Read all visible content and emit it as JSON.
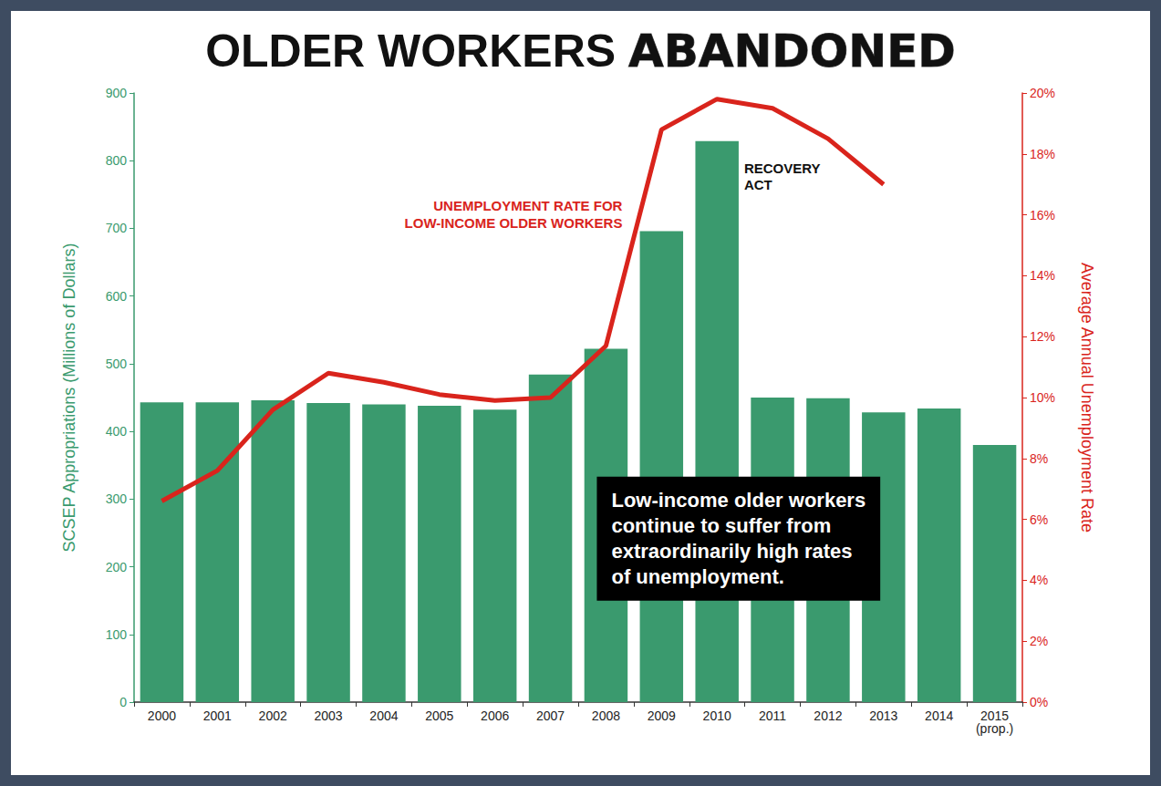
{
  "chart_data": {
    "type": "bar",
    "title": "OLDER WORKERS ABANDONED",
    "categories": [
      "2000",
      "2001",
      "2002",
      "2003",
      "2004",
      "2005",
      "2006",
      "2007",
      "2008",
      "2009",
      "2010",
      "2011",
      "2012",
      "2013",
      "2014",
      "2015 (prop.)"
    ],
    "series": [
      {
        "type": "bar",
        "color": "#3a9a6e",
        "values": [
          443,
          443,
          446,
          442,
          440,
          438,
          432,
          484,
          522,
          696,
          829,
          450,
          449,
          428,
          434,
          380
        ]
      },
      {
        "type": "line",
        "name": "UNEMPLOYMENT RATE FOR LOW-INCOME OLDER WORKERS",
        "axis": "y2",
        "color": "#d9241c",
        "values": [
          6.6,
          7.6,
          9.6,
          10.8,
          10.5,
          10.1,
          9.9,
          10.0,
          11.7,
          18.8,
          19.8,
          19.5,
          18.5,
          17.0,
          null,
          null
        ]
      }
    ],
    "y_label": "SCSEP Appropriations (Millions of Dollars)",
    "y2_label": "Average Annual Unemployment Rate",
    "ylim": [
      0,
      900
    ],
    "yticks": [
      0,
      100,
      200,
      300,
      400,
      500,
      600,
      700,
      800,
      900
    ],
    "y2lim": [
      0,
      20
    ],
    "y2ticks": [
      {
        "value": 0,
        "label": "0%"
      },
      {
        "value": 2,
        "label": "2%"
      },
      {
        "value": 4,
        "label": "4%"
      },
      {
        "value": 6,
        "label": "6%"
      },
      {
        "value": 8,
        "label": "8%"
      },
      {
        "value": 10,
        "label": "10%"
      },
      {
        "value": 12,
        "label": "12%"
      },
      {
        "value": 14,
        "label": "14%"
      },
      {
        "value": 16,
        "label": "16%"
      },
      {
        "value": 18,
        "label": "18%"
      },
      {
        "value": 20,
        "label": "20%"
      }
    ],
    "annotations": [
      "RECOVERY ACT",
      "Low-income older workers continue to suffer from extraordinarily high rates of unemployment."
    ],
    "grid": false
  }
}
